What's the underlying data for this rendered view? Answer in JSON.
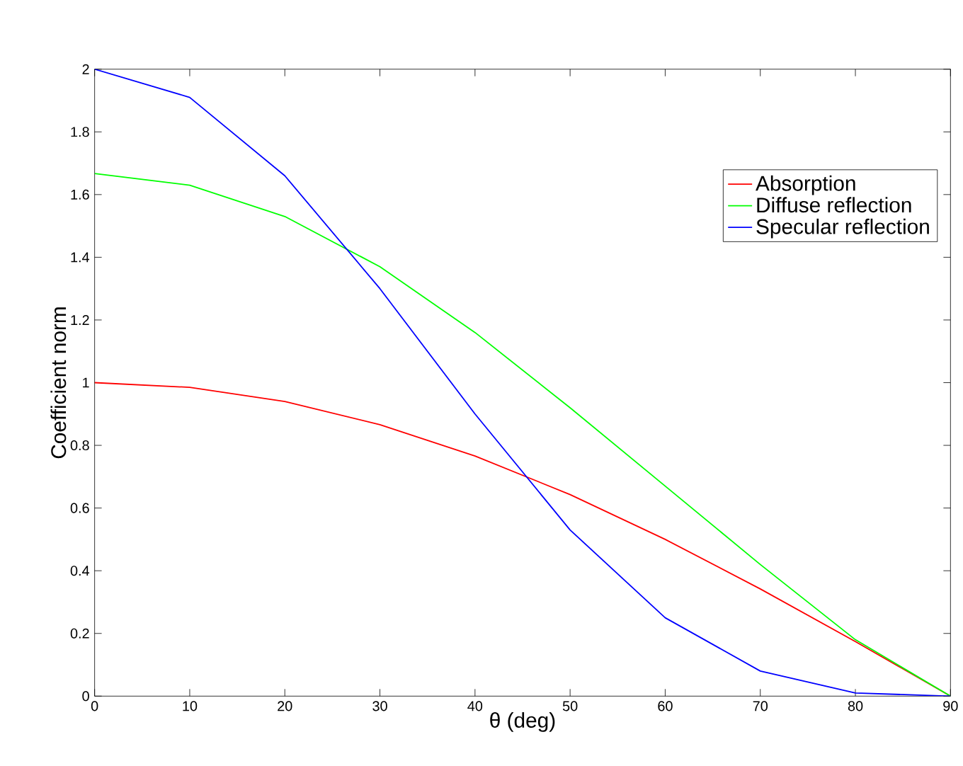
{
  "chart_data": {
    "type": "line",
    "xlabel": "θ (deg)",
    "ylabel": "Coefficient norm",
    "x": [
      0,
      10,
      20,
      30,
      40,
      50,
      60,
      70,
      80,
      90
    ],
    "series": [
      {
        "name": "Absorption",
        "color": "#ff0000",
        "values": [
          1,
          0.985,
          0.94,
          0.866,
          0.766,
          0.643,
          0.5,
          0.342,
          0.174,
          0
        ]
      },
      {
        "name": "Diffuse reflection",
        "color": "#00ff00",
        "values": [
          1.667,
          1.63,
          1.53,
          1.37,
          1.16,
          0.92,
          0.67,
          0.42,
          0.18,
          0
        ]
      },
      {
        "name": "Specular reflection",
        "color": "#0000ff",
        "values": [
          2,
          1.91,
          1.66,
          1.3,
          0.9,
          0.53,
          0.25,
          0.08,
          0.01,
          0
        ]
      }
    ],
    "xlim": [
      0,
      90
    ],
    "xticks": [
      0,
      10,
      20,
      30,
      40,
      50,
      60,
      70,
      80,
      90
    ],
    "ylim": [
      0,
      2
    ],
    "yticks": [
      0,
      0.2,
      0.4,
      0.6,
      0.8,
      1,
      1.2,
      1.4,
      1.6,
      1.8,
      2
    ],
    "legend": "top right",
    "marker": "none",
    "line_style": "solid"
  }
}
